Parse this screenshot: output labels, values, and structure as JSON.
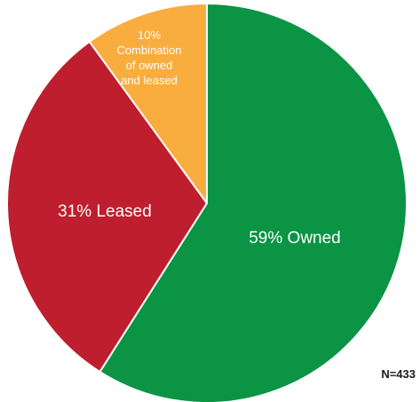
{
  "chart_data": {
    "type": "pie",
    "slices": [
      {
        "label": "59% Owned",
        "value": 59,
        "color": "#0a9444"
      },
      {
        "label": "31% Leased",
        "value": 31,
        "color": "#be1e2d"
      },
      {
        "label": "10%\nCombination\nof owned\nand leased",
        "value": 10,
        "color": "#f9ad3e"
      }
    ],
    "start": "12 o'clock",
    "direction": "clockwise",
    "note": "N=433"
  }
}
